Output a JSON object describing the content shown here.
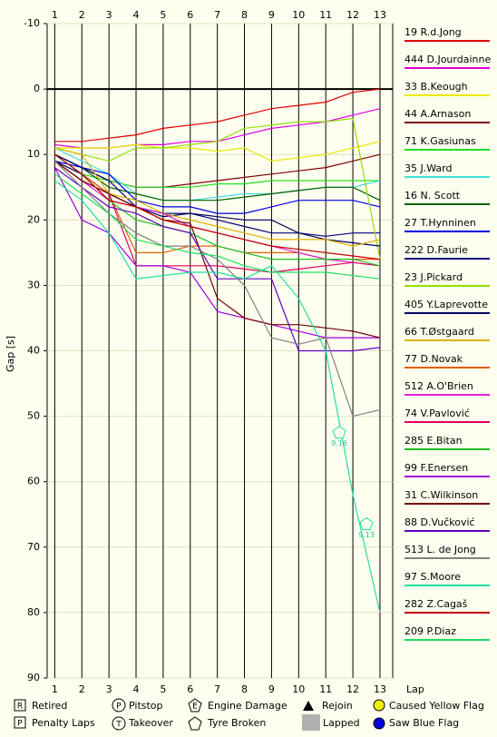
{
  "chart_data": {
    "type": "line",
    "y_label": "Gap [s]",
    "x_label": "Lap",
    "x": [
      1,
      2,
      3,
      4,
      5,
      6,
      7,
      8,
      9,
      10,
      11,
      12,
      13
    ],
    "xlim": [
      0.72,
      13.47
    ],
    "xticks": [
      1,
      2,
      3,
      4,
      5,
      6,
      7,
      8,
      9,
      10,
      11,
      12,
      13
    ],
    "ylim": [
      -10,
      90
    ],
    "yticks": [
      -10,
      0,
      10,
      20,
      30,
      40,
      50,
      60,
      70,
      80,
      90
    ],
    "y_inverted": true,
    "zero_line": true,
    "series": [
      {
        "name": "19 R.d.Jong",
        "color": "#e00000",
        "values": [
          8,
          8,
          7.5,
          7,
          6,
          5.5,
          5,
          4,
          3,
          2.5,
          2,
          0.5,
          0
        ]
      },
      {
        "name": "444 D.Jourdainne",
        "color": "#e000e0",
        "values": [
          8.5,
          9,
          9,
          8.5,
          8.5,
          8,
          8,
          7,
          6,
          5.5,
          5,
          4,
          3
        ]
      },
      {
        "name": "33 B.Keough",
        "color": "#e8e800",
        "values": [
          9,
          9,
          9,
          8.5,
          9,
          9,
          9.5,
          9,
          11,
          10.5,
          10,
          9,
          8
        ]
      },
      {
        "name": "44 A.Arnason",
        "color": "#800000",
        "values": [
          10,
          12,
          14,
          15,
          15,
          14.5,
          14,
          13.5,
          13,
          12.5,
          12,
          11,
          10
        ]
      },
      {
        "name": "71 K.Gasiunas",
        "color": "#20e020",
        "values": [
          10,
          13,
          14,
          15,
          15,
          15,
          14.5,
          14.5,
          14,
          14,
          14,
          14,
          14
        ]
      },
      {
        "name": "35 J.Ward",
        "color": "#40e0e0",
        "values": [
          9,
          11,
          13,
          16,
          17,
          17,
          16.5,
          16,
          16,
          15.5,
          15,
          15,
          14
        ]
      },
      {
        "name": "16 N. Scott",
        "color": "#006000",
        "values": [
          10,
          12,
          15,
          16,
          17,
          17,
          17,
          16.5,
          16,
          15.5,
          15,
          15,
          17
        ]
      },
      {
        "name": "27 T.Hynninen",
        "color": "#0000e0",
        "values": [
          11,
          12,
          13,
          17,
          18,
          18,
          19,
          19,
          18,
          17,
          17,
          17,
          18
        ]
      },
      {
        "name": "222 D.Faurie",
        "color": "#000080",
        "values": [
          10,
          12,
          14,
          18,
          19,
          19,
          20,
          21,
          22,
          22,
          22.5,
          22,
          22
        ]
      },
      {
        "name": "23 J.Pickard",
        "color": "#90e000",
        "values": [
          9,
          10,
          11,
          9,
          9,
          8.5,
          8,
          6,
          5.5,
          5,
          5,
          4.5,
          26
        ]
      },
      {
        "name": "405 Y.Laprevotte",
        "color": "#000060",
        "values": [
          11,
          13,
          16,
          18,
          19.5,
          19,
          19.5,
          20,
          20,
          22,
          23,
          23.5,
          24
        ]
      },
      {
        "name": "66 T.Østgaard",
        "color": "#e0b000",
        "values": [
          9,
          10,
          16,
          17,
          19,
          20,
          21,
          22,
          23,
          23,
          23,
          24,
          23
        ]
      },
      {
        "name": "77 D.Novak",
        "color": "#e06000",
        "values": [
          10,
          13,
          16,
          25,
          25,
          24,
          24,
          25,
          25,
          25,
          26,
          26,
          26
        ]
      },
      {
        "name": "512 A.O'Brien",
        "color": "#e020e0",
        "values": [
          11,
          14,
          17,
          18,
          19,
          21,
          22,
          23,
          24,
          25,
          26,
          26.5,
          27
        ]
      },
      {
        "name": "74 V.Pavlović",
        "color": "#e00060",
        "values": [
          11,
          14,
          16,
          27,
          27,
          27,
          27,
          27.5,
          28,
          27.5,
          27,
          26.5,
          27
        ]
      },
      {
        "name": "285 E.Bitan",
        "color": "#20c020",
        "values": [
          10,
          13,
          17,
          20,
          21,
          22,
          24,
          25,
          26,
          26,
          26,
          26,
          27
        ]
      },
      {
        "name": "99 F.Enersen",
        "color": "#a000e0",
        "values": [
          12,
          20,
          22,
          27,
          27,
          28,
          34,
          35,
          36,
          37,
          38,
          38,
          38
        ]
      },
      {
        "name": "31 C.Wilkinson",
        "color": "#700000",
        "values": [
          11,
          14,
          16,
          18,
          20,
          20.5,
          32,
          35,
          36,
          36,
          36.5,
          37,
          38
        ]
      },
      {
        "name": "88 D.Vučković",
        "color": "#6000c0",
        "values": [
          12,
          15,
          18,
          19,
          21,
          22,
          29,
          29,
          29,
          40,
          40,
          40,
          39.5
        ]
      },
      {
        "name": "513 L. de Jong",
        "color": "#808080",
        "values": [
          11,
          15,
          19,
          22,
          24,
          24,
          26,
          30,
          38,
          39,
          38,
          50,
          49
        ]
      },
      {
        "name": "97 S.Moore",
        "color": "#20e0a0",
        "values": [
          14,
          17,
          22,
          29,
          28.5,
          28,
          28,
          29,
          27,
          32,
          40,
          62,
          80
        ]
      },
      {
        "name": "282 Z.Cagaš",
        "color": "#c00000",
        "values": [
          10,
          13,
          17,
          18,
          20,
          21,
          22,
          23,
          24,
          24.5,
          25,
          25.5,
          26
        ]
      },
      {
        "name": "209 P.Diaz",
        "color": "#20e060",
        "values": [
          13,
          16,
          19,
          23,
          24,
          25,
          25.5,
          27,
          28,
          28,
          28,
          28.5,
          29
        ]
      }
    ],
    "annotations": [
      {
        "text": "9.16",
        "x": 11.5,
        "y": 52.5
      },
      {
        "text": "9.13",
        "x": 12.5,
        "y": 66.5
      }
    ],
    "key": [
      "Retired",
      "Pitstop",
      "Engine Damage",
      "Rejoin",
      "Caused Yellow Flag",
      "Penalty Laps",
      "Takeover",
      "Tyre Broken",
      "Lapped",
      "Saw Blue Flag"
    ]
  }
}
